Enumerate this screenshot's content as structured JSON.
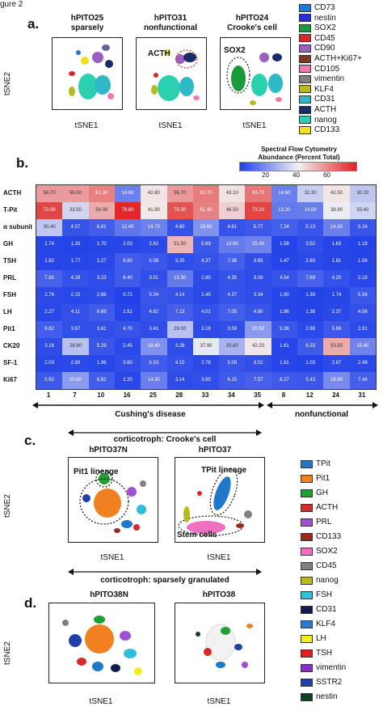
{
  "figure_label": "gure 2",
  "panel_a": {
    "letter": "a.",
    "plots": [
      {
        "title": "hPITO25",
        "subtitle": "sparsely"
      },
      {
        "title": "hPITO31",
        "subtitle": "nonfunctional",
        "annotation": "ACTH"
      },
      {
        "title": "hPITO24",
        "subtitle": "Crooke's cell",
        "annotation": "SOX2"
      }
    ],
    "xlabel": "tSNE1",
    "ylabel": "tSNE2",
    "legend": [
      {
        "label": "CD73",
        "color": "#1f78c8"
      },
      {
        "label": "nestin",
        "color": "#2b2bd6"
      },
      {
        "label": "SOX2",
        "color": "#1a9a3a"
      },
      {
        "label": "CD45",
        "color": "#d62a2a"
      },
      {
        "label": "CD90",
        "color": "#9a5fc0"
      },
      {
        "label": "ACTH+Ki67+",
        "color": "#7a3a20"
      },
      {
        "label": "CD105",
        "color": "#f07ab0"
      },
      {
        "label": "vimentin",
        "color": "#808080"
      },
      {
        "label": "KLF4",
        "color": "#b8b820"
      },
      {
        "label": "CD31",
        "color": "#2fb8c8"
      },
      {
        "label": "ACTH",
        "color": "#1a2b6a"
      },
      {
        "label": "nanog",
        "color": "#2ad0b0"
      },
      {
        "label": "CD133",
        "color": "#f0e020"
      }
    ]
  },
  "panel_b": {
    "letter": "b.",
    "scale_title_1": "Spectral Flow Cytometry",
    "scale_title_2": "Abundance (Percent Total)",
    "scale_ticks": [
      "20",
      "40",
      "60"
    ],
    "group_cushing": "Cushing's disease",
    "group_nonfunctional": "nonfunctional"
  },
  "chart_data": {
    "type": "heatmap",
    "rows": [
      "ACTH",
      "T-Pit",
      "α subunit",
      "GH",
      "TSH",
      "PRL",
      "FSH",
      "LH",
      "Pit1",
      "CK20",
      "SF-1",
      "Ki67"
    ],
    "columns": [
      "1",
      "7",
      "10",
      "16",
      "25",
      "28",
      "33",
      "34",
      "35",
      "8",
      "12",
      "24",
      "31"
    ],
    "values": [
      [
        56.7,
        56.5,
        61.3,
        14.6,
        42.6,
        56.7,
        62.7,
        43.1,
        63.7,
        14.6,
        32.3,
        42.5,
        30.2
      ],
      [
        73.0,
        33.5,
        54.0,
        78.6,
        41.9,
        70.3,
        61.4,
        46.5,
        73.2,
        13.2,
        14.0,
        38.9,
        33.4
      ],
      [
        30.4,
        4.57,
        6.81,
        12.4,
        14.7,
        4.6,
        18.6,
        4.61,
        5.77,
        7.24,
        5.13,
        14.3,
        5.16
      ],
      [
        1.74,
        1.33,
        1.7,
        2.03,
        2.62,
        51.5,
        5.69,
        13.6,
        15.4,
        1.58,
        3.52,
        1.63,
        1.18
      ],
      [
        1.82,
        1.77,
        2.27,
        6.6,
        5.56,
        3.25,
        4.37,
        7.36,
        3.65,
        1.47,
        2.6,
        1.81,
        1.56
      ],
      [
        7.8,
        4.29,
        3.23,
        6.4,
        3.51,
        13.3,
        2.8,
        4.35,
        3.08,
        4.54,
        7.69,
        4.2,
        2.18
      ],
      [
        2.76,
        2.15,
        2.88,
        0.72,
        5.34,
        4.14,
        2.45,
        4.37,
        3.34,
        1.9,
        1.39,
        1.74,
        5.56
      ],
      [
        2.27,
        4.11,
        6.69,
        1.51,
        4.62,
        7.13,
        4.01,
        7.05,
        4.8,
        1.86,
        1.38,
        2.37,
        4.08
      ],
      [
        6.82,
        3.67,
        3.61,
        4.7,
        3.41,
        29.0,
        3.18,
        3.59,
        20.5,
        5.36,
        2.68,
        5.96,
        2.91
      ],
      [
        3.16,
        28.9,
        5.29,
        2.45,
        18.4,
        3.28,
        37.9,
        25.8,
        42.2,
        1.61,
        6.33,
        53.5,
        15.4
      ],
      [
        2.03,
        2.6,
        1.96,
        3.6,
        6.53,
        4.15,
        2.76,
        5.0,
        3.52,
        1.61,
        1.03,
        2.67,
        2.49
      ],
      [
        5.92,
        20.6,
        6.81,
        2.2,
        14.3,
        3.14,
        3.65,
        6.15,
        7.57,
        6.17,
        5.43,
        16.9,
        7.44
      ]
    ],
    "color_scale": {
      "low": "#1e3ee8",
      "mid": "#f2f2f2",
      "high": "#e02020",
      "range": [
        0,
        80
      ]
    }
  },
  "panel_c": {
    "letter": "c.",
    "header": "corticotroph:  Crooke's cell",
    "plots": [
      {
        "title": "hPITO37N",
        "annotation": "Pit1 lineage"
      },
      {
        "title": "hPITO37",
        "annotation": "TPit lineage",
        "annotation2": "Stem cells"
      }
    ],
    "xlabel": "tSNE1",
    "ylabel": "tSNE2"
  },
  "panel_d": {
    "letter": "d.",
    "header": "corticotroph:  sparsely granulated",
    "plots": [
      {
        "title": "hPITO38N"
      },
      {
        "title": "hPITO38"
      }
    ],
    "xlabel": "tSNE1",
    "ylabel": "tSNE2"
  },
  "legend_cd": [
    {
      "label": "TPit",
      "color": "#1f78c8"
    },
    {
      "label": "Pit1",
      "color": "#f08020"
    },
    {
      "label": "GH",
      "color": "#20a030"
    },
    {
      "label": "ACTH",
      "color": "#d62a2a"
    },
    {
      "label": "PRL",
      "color": "#a050d0"
    },
    {
      "label": "CD133",
      "color": "#9a2a20"
    },
    {
      "label": "SOX2",
      "color": "#f070c0"
    },
    {
      "label": "CD45",
      "color": "#808080"
    },
    {
      "label": "nanog",
      "color": "#b8b820"
    },
    {
      "label": "FSH",
      "color": "#2fc0d8"
    },
    {
      "label": "CD31",
      "color": "#101a50"
    },
    {
      "label": "KLF4",
      "color": "#2a7ad0"
    },
    {
      "label": "LH",
      "color": "#f0f020"
    },
    {
      "label": "TSH",
      "color": "#e02020"
    },
    {
      "label": "vimentin",
      "color": "#8a30c0"
    },
    {
      "label": "SSTR2",
      "color": "#2040a8"
    },
    {
      "label": "nestin",
      "color": "#104020"
    }
  ]
}
